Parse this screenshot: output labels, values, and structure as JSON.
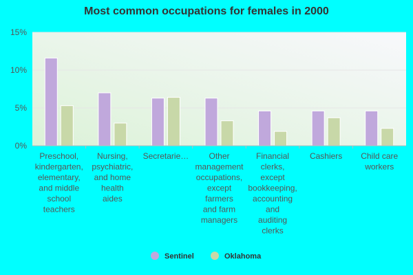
{
  "chart_data": {
    "type": "bar",
    "title": "Most common occupations for females in 2000",
    "xlabel": "",
    "ylabel": "",
    "ylim": [
      0,
      15
    ],
    "y_ticks": [
      "0%",
      "5%",
      "10%",
      "15%"
    ],
    "y_tick_values": [
      0,
      5,
      10,
      15
    ],
    "grid": true,
    "legend_position": "bottom",
    "categories": [
      [
        "Preschool,",
        "kindergarten,",
        "elementary,",
        "and middle",
        "school",
        "teachers"
      ],
      [
        "Nursing,",
        "psychiatric,",
        "and home",
        "health",
        "aides"
      ],
      [
        "Secretarie…"
      ],
      [
        "Other",
        "management",
        "occupations,",
        "except",
        "farmers",
        "and farm",
        "managers"
      ],
      [
        "Financial",
        "clerks,",
        "except",
        "bookkeeping,",
        "accounting",
        "and",
        "auditing",
        "clerks"
      ],
      [
        "Cashiers"
      ],
      [
        "Child care",
        "workers"
      ]
    ],
    "series": [
      {
        "name": "Sentinel",
        "color": "#c0a8dc",
        "values": [
          11.6,
          7.0,
          6.3,
          6.3,
          4.6,
          4.6,
          4.6
        ]
      },
      {
        "name": "Oklahoma",
        "color": "#c8d8a8",
        "values": [
          5.3,
          3.0,
          6.4,
          3.3,
          1.9,
          3.7,
          2.3
        ]
      }
    ]
  }
}
